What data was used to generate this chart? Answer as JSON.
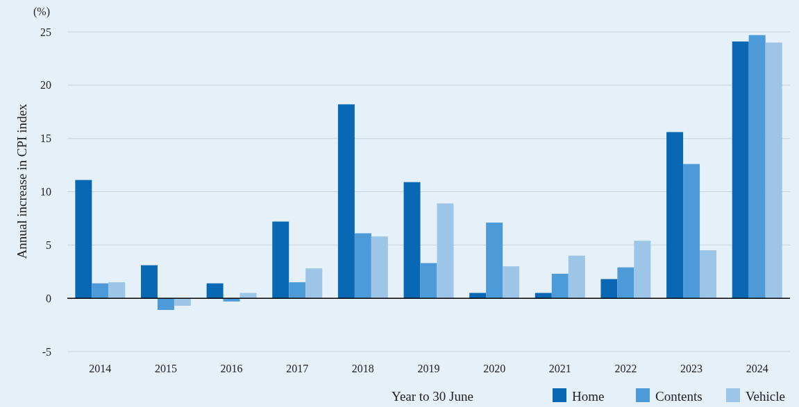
{
  "chart_data": {
    "type": "bar",
    "xlabel": "Year to 30 June",
    "ylabel": "Annual increase in CPI index",
    "annotations": [
      "(%)"
    ],
    "categories": [
      "2014",
      "2015",
      "2016",
      "2017",
      "2018",
      "2019",
      "2020",
      "2021",
      "2022",
      "2023",
      "2024"
    ],
    "series": [
      {
        "name": "Home",
        "color": "#0868b4",
        "values": [
          11.1,
          3.1,
          1.4,
          7.2,
          18.2,
          10.9,
          0.5,
          0.5,
          1.8,
          15.6,
          24.1
        ]
      },
      {
        "name": "Contents",
        "color": "#4d9ad8",
        "values": [
          1.4,
          -1.1,
          -0.3,
          1.5,
          6.1,
          3.3,
          7.1,
          2.3,
          2.9,
          12.6,
          24.7
        ]
      },
      {
        "name": "Vehicle",
        "color": "#9cc5e8",
        "values": [
          1.5,
          -0.7,
          0.5,
          2.8,
          5.8,
          8.9,
          3.0,
          4.0,
          5.4,
          4.5,
          24.0
        ]
      }
    ],
    "ylim": [
      -5,
      25
    ],
    "yticks": [
      -5,
      0,
      5,
      10,
      15,
      20,
      25
    ],
    "grid": "y",
    "legend": "bottom right"
  }
}
